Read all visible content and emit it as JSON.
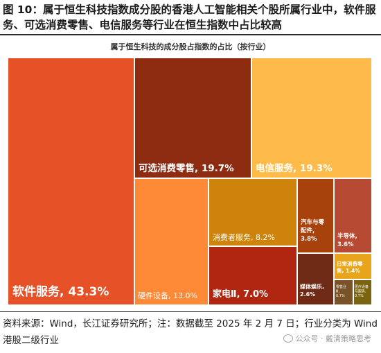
{
  "figure": {
    "title": "图 10：属于恒生科技指数成分股的香港人工智能相关个股所属行业中，软件服务、可选消费零售、电信服务等行业在恒生指数中占比较高",
    "source": "资料来源：Wind，长江证券研究所；注：数据截至 2025 年 2 月 7 日；行业分类为 Wind 港股二级行业",
    "watermark": "公众号 · 戴清策略思考",
    "watermark_icon": "wechat-icon"
  },
  "chart_data": {
    "type": "treemap",
    "title": "属于恒生科技的成分股占指数的占比（按行业）",
    "unit": "%",
    "items": [
      {
        "label": "软件服务",
        "value": 43.3,
        "display": "软件服务, 43.3%",
        "color": "#E65127"
      },
      {
        "label": "可选消费零售",
        "value": 19.7,
        "display": "可选消费零售, 19.7%",
        "color": "#8E2C12"
      },
      {
        "label": "电信服务",
        "value": 19.3,
        "display": "电信服务, 19.3%",
        "color": "#FEBB49"
      },
      {
        "label": "硬件设备",
        "value": 13.0,
        "display": "硬件设备, 13.0%",
        "color": "#FE8A37"
      },
      {
        "label": "消费者服务",
        "value": 8.2,
        "display": "消费者服务, 8.2%",
        "color": "#CE840B"
      },
      {
        "label": "家电Ⅱ",
        "value": 7.0,
        "display": "家电Ⅱ, 7.0%",
        "color": "#B02610"
      },
      {
        "label": "汽车与零配件",
        "value": 3.8,
        "display": [
          "汽车与零",
          "配件,",
          "3.8%"
        ],
        "color": "#A8420D"
      },
      {
        "label": "半导体",
        "value": 3.6,
        "display": [
          "半导体,",
          "3.6%"
        ],
        "color": "#B64A32"
      },
      {
        "label": "媒体娱乐",
        "value": 2.6,
        "display": [
          "媒体娱乐,",
          "2.6%"
        ],
        "color": "#6E2A14"
      },
      {
        "label": "日常消费零售",
        "value": 1.4,
        "display": [
          "日常消费零",
          "售, 1.4%"
        ],
        "color": "#E8A41A"
      },
      {
        "label": "零售业",
        "value": 0.7,
        "display": [
          "零售业",
          "Ⅲ,",
          "0.7%"
        ],
        "color": "#7A5228"
      },
      {
        "label": "医疗设备与服务",
        "value": 0.7,
        "display": [
          "医疗设备",
          "与服务,",
          "0.7%"
        ],
        "color": "#7A6410"
      }
    ]
  }
}
